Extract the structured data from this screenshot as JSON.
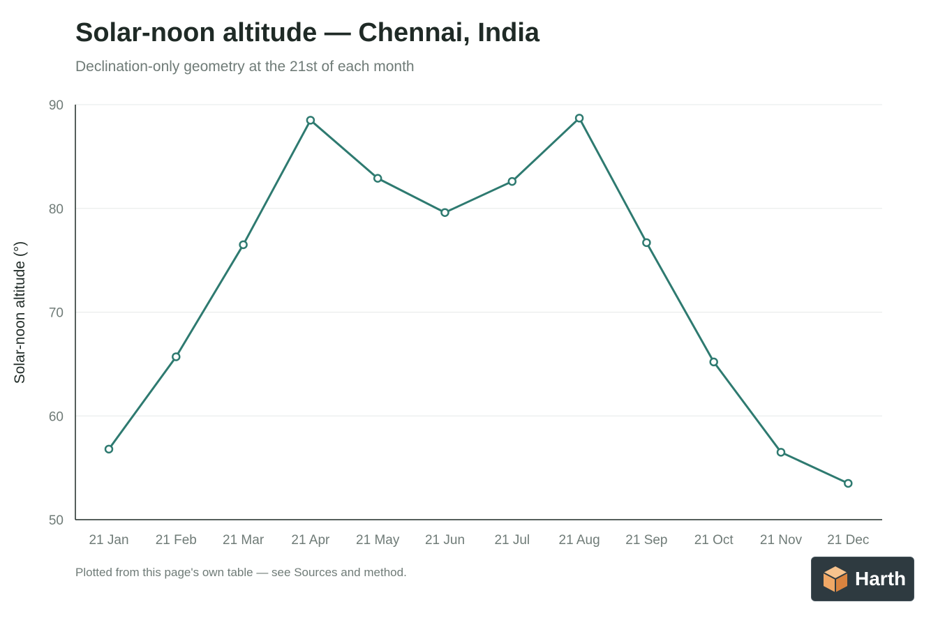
{
  "header": {
    "title": "Solar-noon altitude — Chennai, India",
    "subtitle": "Declination-only geometry at the 21st of each month"
  },
  "footer": {
    "note": "Plotted from this page's own table — see Sources and method."
  },
  "brand": {
    "name": "Harth",
    "icon": "cube-icon"
  },
  "colors": {
    "series": "#2e7a70",
    "grid": "#e6e9e8",
    "axis": "#1f2a26",
    "badge_bg": "#2e3a40",
    "logo_orange": "#f0a866"
  },
  "chart_data": {
    "type": "line",
    "title": "Solar-noon altitude — Chennai, India",
    "subtitle": "Declination-only geometry at the 21st of each month",
    "xlabel": "",
    "ylabel": "Solar-noon altitude (°)",
    "categories": [
      "21 Jan",
      "21 Feb",
      "21 Mar",
      "21 Apr",
      "21 May",
      "21 Jun",
      "21 Jul",
      "21 Aug",
      "21 Sep",
      "21 Oct",
      "21 Nov",
      "21 Dec"
    ],
    "series": [
      {
        "values": [
          56.8,
          65.7,
          76.5,
          88.5,
          82.9,
          79.6,
          82.6,
          88.7,
          76.7,
          65.2,
          56.5,
          53.5
        ]
      }
    ],
    "ylim": [
      50,
      90
    ],
    "yticks": [
      50,
      60,
      70,
      80,
      90
    ],
    "grid": true,
    "legend": "none",
    "markers": "hollow-circle"
  }
}
